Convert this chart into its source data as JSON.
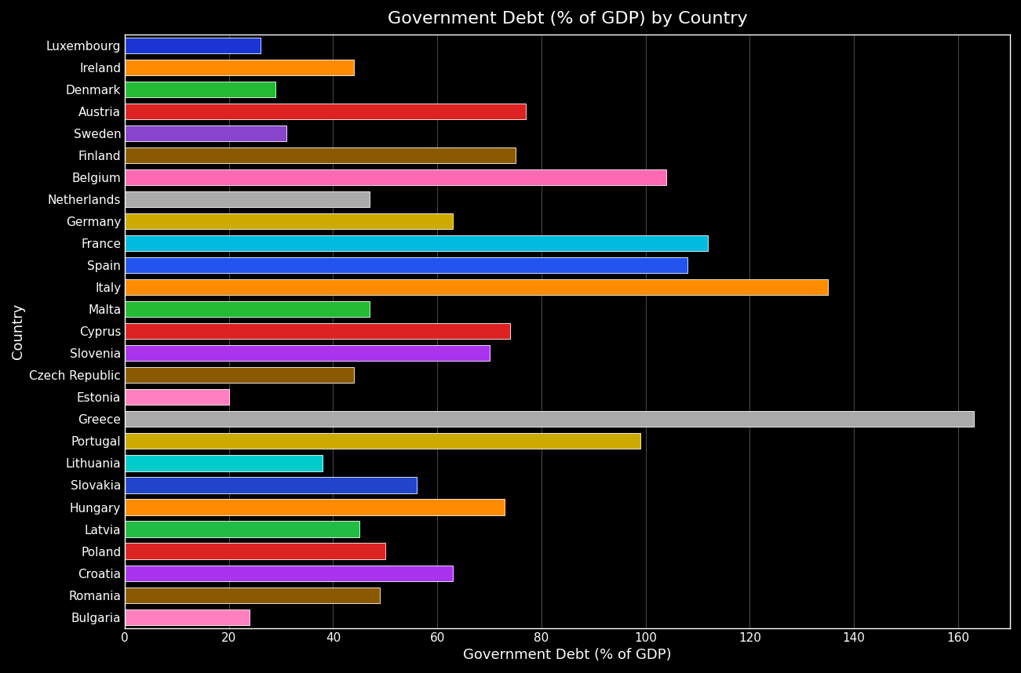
{
  "title": "Government Debt (% of GDP) by Country",
  "xlabel": "Government Debt (% of GDP)",
  "ylabel": "Country",
  "background_color": "#000000",
  "text_color": "#ffffff",
  "grid_color": "#444444",
  "bar_edge_color": "#ffffff",
  "countries": [
    "Luxembourg",
    "Ireland",
    "Denmark",
    "Austria",
    "Sweden",
    "Finland",
    "Belgium",
    "Netherlands",
    "Germany",
    "France",
    "Spain",
    "Italy",
    "Malta",
    "Cyprus",
    "Slovenia",
    "Czech Republic",
    "Estonia",
    "Greece",
    "Portugal",
    "Lithuania",
    "Slovakia",
    "Hungary",
    "Latvia",
    "Poland",
    "Croatia",
    "Romania",
    "Bulgaria"
  ],
  "values": [
    26,
    44,
    29,
    77,
    31,
    75,
    104,
    47,
    63,
    112,
    108,
    135,
    47,
    74,
    70,
    44,
    20,
    163,
    99,
    38,
    56,
    73,
    45,
    50,
    63,
    49,
    24
  ],
  "colors": [
    "#1a35d4",
    "#ff8c00",
    "#22bb33",
    "#dd2222",
    "#8844cc",
    "#8b5a00",
    "#ff69b4",
    "#aaaaaa",
    "#ccaa00",
    "#00bbdd",
    "#2255ee",
    "#ff8c00",
    "#22bb33",
    "#dd2222",
    "#aa33ee",
    "#8b5a00",
    "#ff80c0",
    "#aaaaaa",
    "#ccaa00",
    "#00cccc",
    "#2244cc",
    "#ff8c00",
    "#22bb44",
    "#dd2222",
    "#aa33ee",
    "#8b5a00",
    "#ff80c0"
  ],
  "xlim": [
    0,
    170
  ],
  "xticks": [
    0,
    20,
    40,
    60,
    80,
    100,
    120,
    140,
    160
  ],
  "title_fontsize": 16,
  "axis_label_fontsize": 13,
  "tick_fontsize": 11,
  "bar_height": 0.72
}
